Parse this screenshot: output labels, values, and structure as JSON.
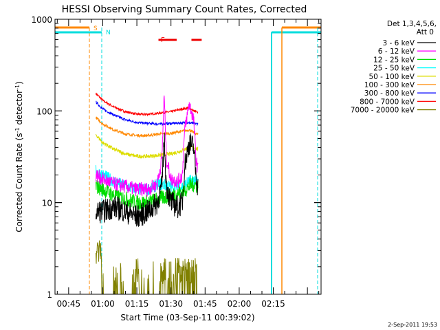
{
  "chart_data": {
    "type": "line",
    "title": "HESSI Observing Summary Count Rates, Corrected",
    "xlabel": "Start Time (03-Sep-11 00:39:02)",
    "ylabel": "Corrected Count Rate (s⁻¹ detector⁻¹)",
    "ylabel_parts": [
      "Corrected Count Rate (s",
      "-1",
      " detector",
      "-1",
      ")"
    ],
    "yscale": "log",
    "ylim": [
      1,
      1000
    ],
    "xlim_min": [
      39,
      156
    ],
    "x_ticks": [
      {
        "min": 45,
        "label": "00:45"
      },
      {
        "min": 60,
        "label": "01:00"
      },
      {
        "min": 75,
        "label": "01:15"
      },
      {
        "min": 90,
        "label": "01:30"
      },
      {
        "min": 105,
        "label": "01:45"
      },
      {
        "min": 120,
        "label": "02:00"
      },
      {
        "min": 135,
        "label": "02:15"
      }
    ],
    "y_ticks": [
      {
        "value": 1,
        "label": "1"
      },
      {
        "value": 10,
        "label": "10"
      },
      {
        "value": 100,
        "label": "100"
      },
      {
        "value": 1000,
        "label": "1000"
      }
    ],
    "legend": {
      "header": [
        "Det 1,3,4,5,6,",
        "Att 0"
      ],
      "placement": "right",
      "entries": [
        {
          "label": "3 - 6 keV",
          "color": "#000000"
        },
        {
          "label": "6 - 12 keV",
          "color": "#ff00ff"
        },
        {
          "label": "12 - 25 keV",
          "color": "#00dd00"
        },
        {
          "label": "25 - 50 keV",
          "color": "#00ffff"
        },
        {
          "label": "50 - 100 keV",
          "color": "#dddd00"
        },
        {
          "label": "100 - 300 keV",
          "color": "#ff8800"
        },
        {
          "label": "300 - 800 keV",
          "color": "#0000ff"
        },
        {
          "label": "800 - 7000 keV",
          "color": "#ff0000"
        },
        {
          "label": "7000 - 20000 keV",
          "color": "#808000"
        }
      ]
    },
    "series": [
      {
        "label": "3 - 6 keV",
        "color": "#000000",
        "x": [
          57,
          60,
          65,
          70,
          75,
          80,
          84,
          86,
          87,
          88,
          90,
          93,
          95,
          96,
          98,
          100,
          101,
          102
        ],
        "y": [
          8,
          8,
          9,
          8,
          7,
          8,
          10,
          15,
          50,
          15,
          10,
          9,
          10,
          25,
          45,
          40,
          20,
          14
        ],
        "noise": 0.3
      },
      {
        "label": "6 - 12 keV",
        "color": "#ff00ff",
        "x": [
          57,
          60,
          65,
          70,
          75,
          80,
          84,
          86,
          87,
          88,
          90,
          93,
          95,
          96,
          98,
          100,
          101,
          102
        ],
        "y": [
          20,
          18,
          16,
          15,
          14,
          14,
          16,
          30,
          150,
          30,
          18,
          17,
          20,
          60,
          120,
          80,
          30,
          22
        ],
        "noise": 0.18
      },
      {
        "label": "12 - 25 keV",
        "color": "#00dd00",
        "x": [
          57,
          60,
          65,
          70,
          75,
          80,
          85,
          90,
          95,
          98,
          100,
          102
        ],
        "y": [
          15,
          14,
          12,
          11,
          10,
          10,
          11,
          12,
          13,
          15,
          16,
          15
        ],
        "noise": 0.2
      },
      {
        "label": "25 - 50 keV",
        "color": "#00ffff",
        "x": [
          57,
          60,
          65,
          70,
          75,
          80,
          85,
          90,
          95,
          98,
          100,
          102
        ],
        "y": [
          22,
          20,
          17,
          15,
          14,
          14,
          16,
          15,
          15,
          17,
          18,
          17
        ],
        "noise": 0.16
      },
      {
        "label": "50 - 100 keV",
        "color": "#dddd00",
        "x": [
          57,
          60,
          65,
          70,
          75,
          80,
          85,
          90,
          95,
          98,
          100,
          102
        ],
        "y": [
          55,
          45,
          38,
          34,
          32,
          32,
          33,
          34,
          37,
          40,
          40,
          38
        ],
        "noise": 0.05
      },
      {
        "label": "100 - 300 keV",
        "color": "#ff8800",
        "x": [
          57,
          60,
          65,
          70,
          75,
          80,
          85,
          90,
          95,
          98,
          100,
          102
        ],
        "y": [
          85,
          72,
          62,
          56,
          54,
          54,
          56,
          57,
          60,
          62,
          58,
          55
        ],
        "noise": 0.035
      },
      {
        "label": "300 - 800 keV",
        "color": "#0000ff",
        "x": [
          57,
          60,
          65,
          70,
          75,
          80,
          85,
          90,
          95,
          98,
          100,
          102
        ],
        "y": [
          125,
          105,
          90,
          80,
          75,
          73,
          72,
          73,
          74,
          74,
          73,
          72
        ],
        "noise": 0.03
      },
      {
        "label": "800 - 7000 keV",
        "color": "#ff0000",
        "x": [
          57,
          60,
          65,
          70,
          75,
          80,
          85,
          90,
          95,
          98,
          100,
          102
        ],
        "y": [
          155,
          130,
          110,
          98,
          92,
          92,
          95,
          98,
          105,
          108,
          100,
          96
        ],
        "noise": 0.03
      }
    ],
    "flare_bar_ranges_min": [
      [
        84.5,
        92.5
      ],
      [
        99,
        103.5
      ]
    ],
    "annotations": {
      "saa_label": "S",
      "night_label": "N",
      "flare_label": "F"
    },
    "colors": {
      "axis": "#000000",
      "saa": "#ff8800",
      "night": "#00dddd",
      "flare": "#ee0000",
      "grid": false
    }
  },
  "footer": {
    "date": "2-Sep-2011 19:53"
  }
}
